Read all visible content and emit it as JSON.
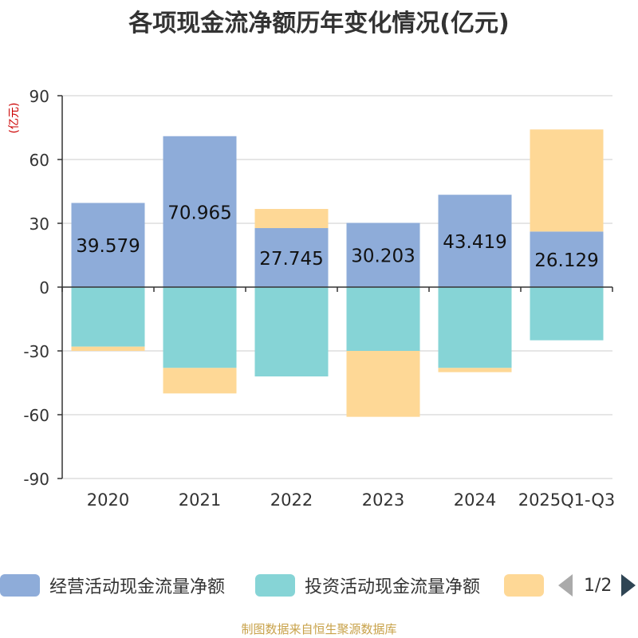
{
  "chart_data": {
    "type": "bar",
    "title": "各项现金流净额历年变化情况(亿元)",
    "ylabel": "(亿元)",
    "categories": [
      "2020",
      "2021",
      "2022",
      "2023",
      "2024",
      "2025Q1-Q3"
    ],
    "ylim": [
      -90,
      90
    ],
    "yticks": [
      90,
      60,
      30,
      0,
      -30,
      -60,
      -90
    ],
    "grid": true,
    "stacked": true,
    "legend_position": "bottom",
    "series": [
      {
        "name": "经营活动现金流量净额",
        "color": "#8eacd9",
        "values": [
          39.579,
          70.965,
          27.745,
          30.203,
          43.419,
          26.129
        ],
        "show_labels": true
      },
      {
        "name": "投资活动现金流量净额",
        "color": "#86d4d6",
        "values": [
          -28,
          -38,
          -42,
          -30,
          -38,
          -25
        ],
        "show_labels": false
      },
      {
        "name": "",
        "color": "#fed896",
        "values": [
          -2,
          -12,
          9,
          -31,
          -2,
          48
        ],
        "show_labels": false
      }
    ]
  },
  "legend": {
    "pager_text": "1/2"
  },
  "source_text": "制图数据来自恒生聚源数据库"
}
